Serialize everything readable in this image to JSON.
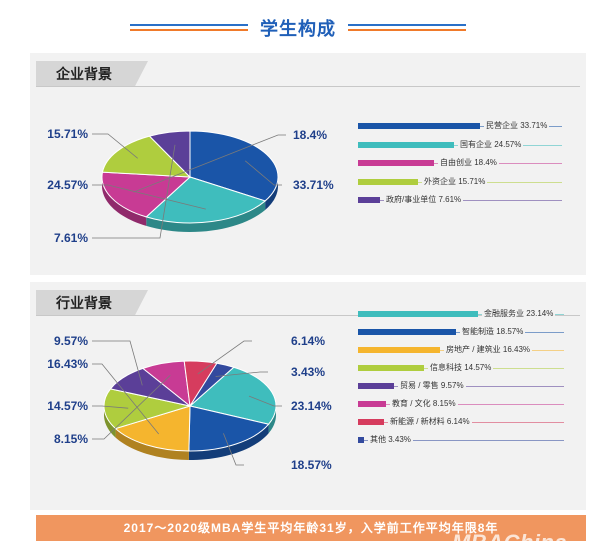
{
  "header": {
    "title": "学生构成"
  },
  "sections": [
    {
      "tag": "企业背景"
    },
    {
      "tag": "行业背景"
    }
  ],
  "footer": {
    "text": "2017～2020级MBA学生平均年龄31岁，入学前工作平均年限8年"
  },
  "watermark": "MBAChina",
  "chart_data": [
    {
      "type": "pie",
      "title": "企业背景",
      "series": [
        {
          "name": "民营企业",
          "value": 33.71,
          "label": "33.71%",
          "color": "#1a55a8"
        },
        {
          "name": "国有企业",
          "value": 24.57,
          "label": "24.57%",
          "color": "#3fbdbd"
        },
        {
          "name": "自由创业",
          "value": 18.4,
          "label": "18.4%",
          "color": "#c83b94"
        },
        {
          "name": "外资企业",
          "value": 15.71,
          "label": "15.71%",
          "color": "#afcd3e"
        },
        {
          "name": "政府/事业单位",
          "value": 7.61,
          "label": "7.61%",
          "color": "#5b3f98"
        }
      ],
      "legend_labels": [
        "民营企业 33.71%",
        "国有企业 24.57%",
        "自由创业 18.4%",
        "外资企业 15.71%",
        "政府/事业单位 7.61%"
      ],
      "legend": "right"
    },
    {
      "type": "pie",
      "title": "行业背景",
      "series": [
        {
          "name": "金融服务业",
          "value": 23.14,
          "label": "23.14%",
          "color": "#3fbdbd"
        },
        {
          "name": "智能制造",
          "value": 18.57,
          "label": "18.57%",
          "color": "#1a55a8"
        },
        {
          "name": "房地产 / 建筑业",
          "value": 16.43,
          "label": "16.43%",
          "color": "#f5b52e"
        },
        {
          "name": "信息科技",
          "value": 14.57,
          "label": "14.57%",
          "color": "#afcd3e"
        },
        {
          "name": "贸易 / 零售",
          "value": 9.57,
          "label": "9.57%",
          "color": "#5b3f98"
        },
        {
          "name": "教育 / 文化",
          "value": 8.15,
          "label": "8.15%",
          "color": "#c83b94"
        },
        {
          "name": "新能源 / 新材料",
          "value": 6.14,
          "label": "6.14%",
          "color": "#d63c5e"
        },
        {
          "name": "其他",
          "value": 3.43,
          "label": "3.43%",
          "color": "#334a9e"
        }
      ],
      "legend_labels": [
        "金融服务业 23.14%",
        "智能制造 18.57%",
        "房地产 / 建筑业 16.43%",
        "信息科技 14.57%",
        "贸易 / 零售 9.57%",
        "教育 / 文化 8.15%",
        "新能源 / 新材料 6.14%",
        "其他 3.43%"
      ],
      "legend": "right"
    }
  ]
}
